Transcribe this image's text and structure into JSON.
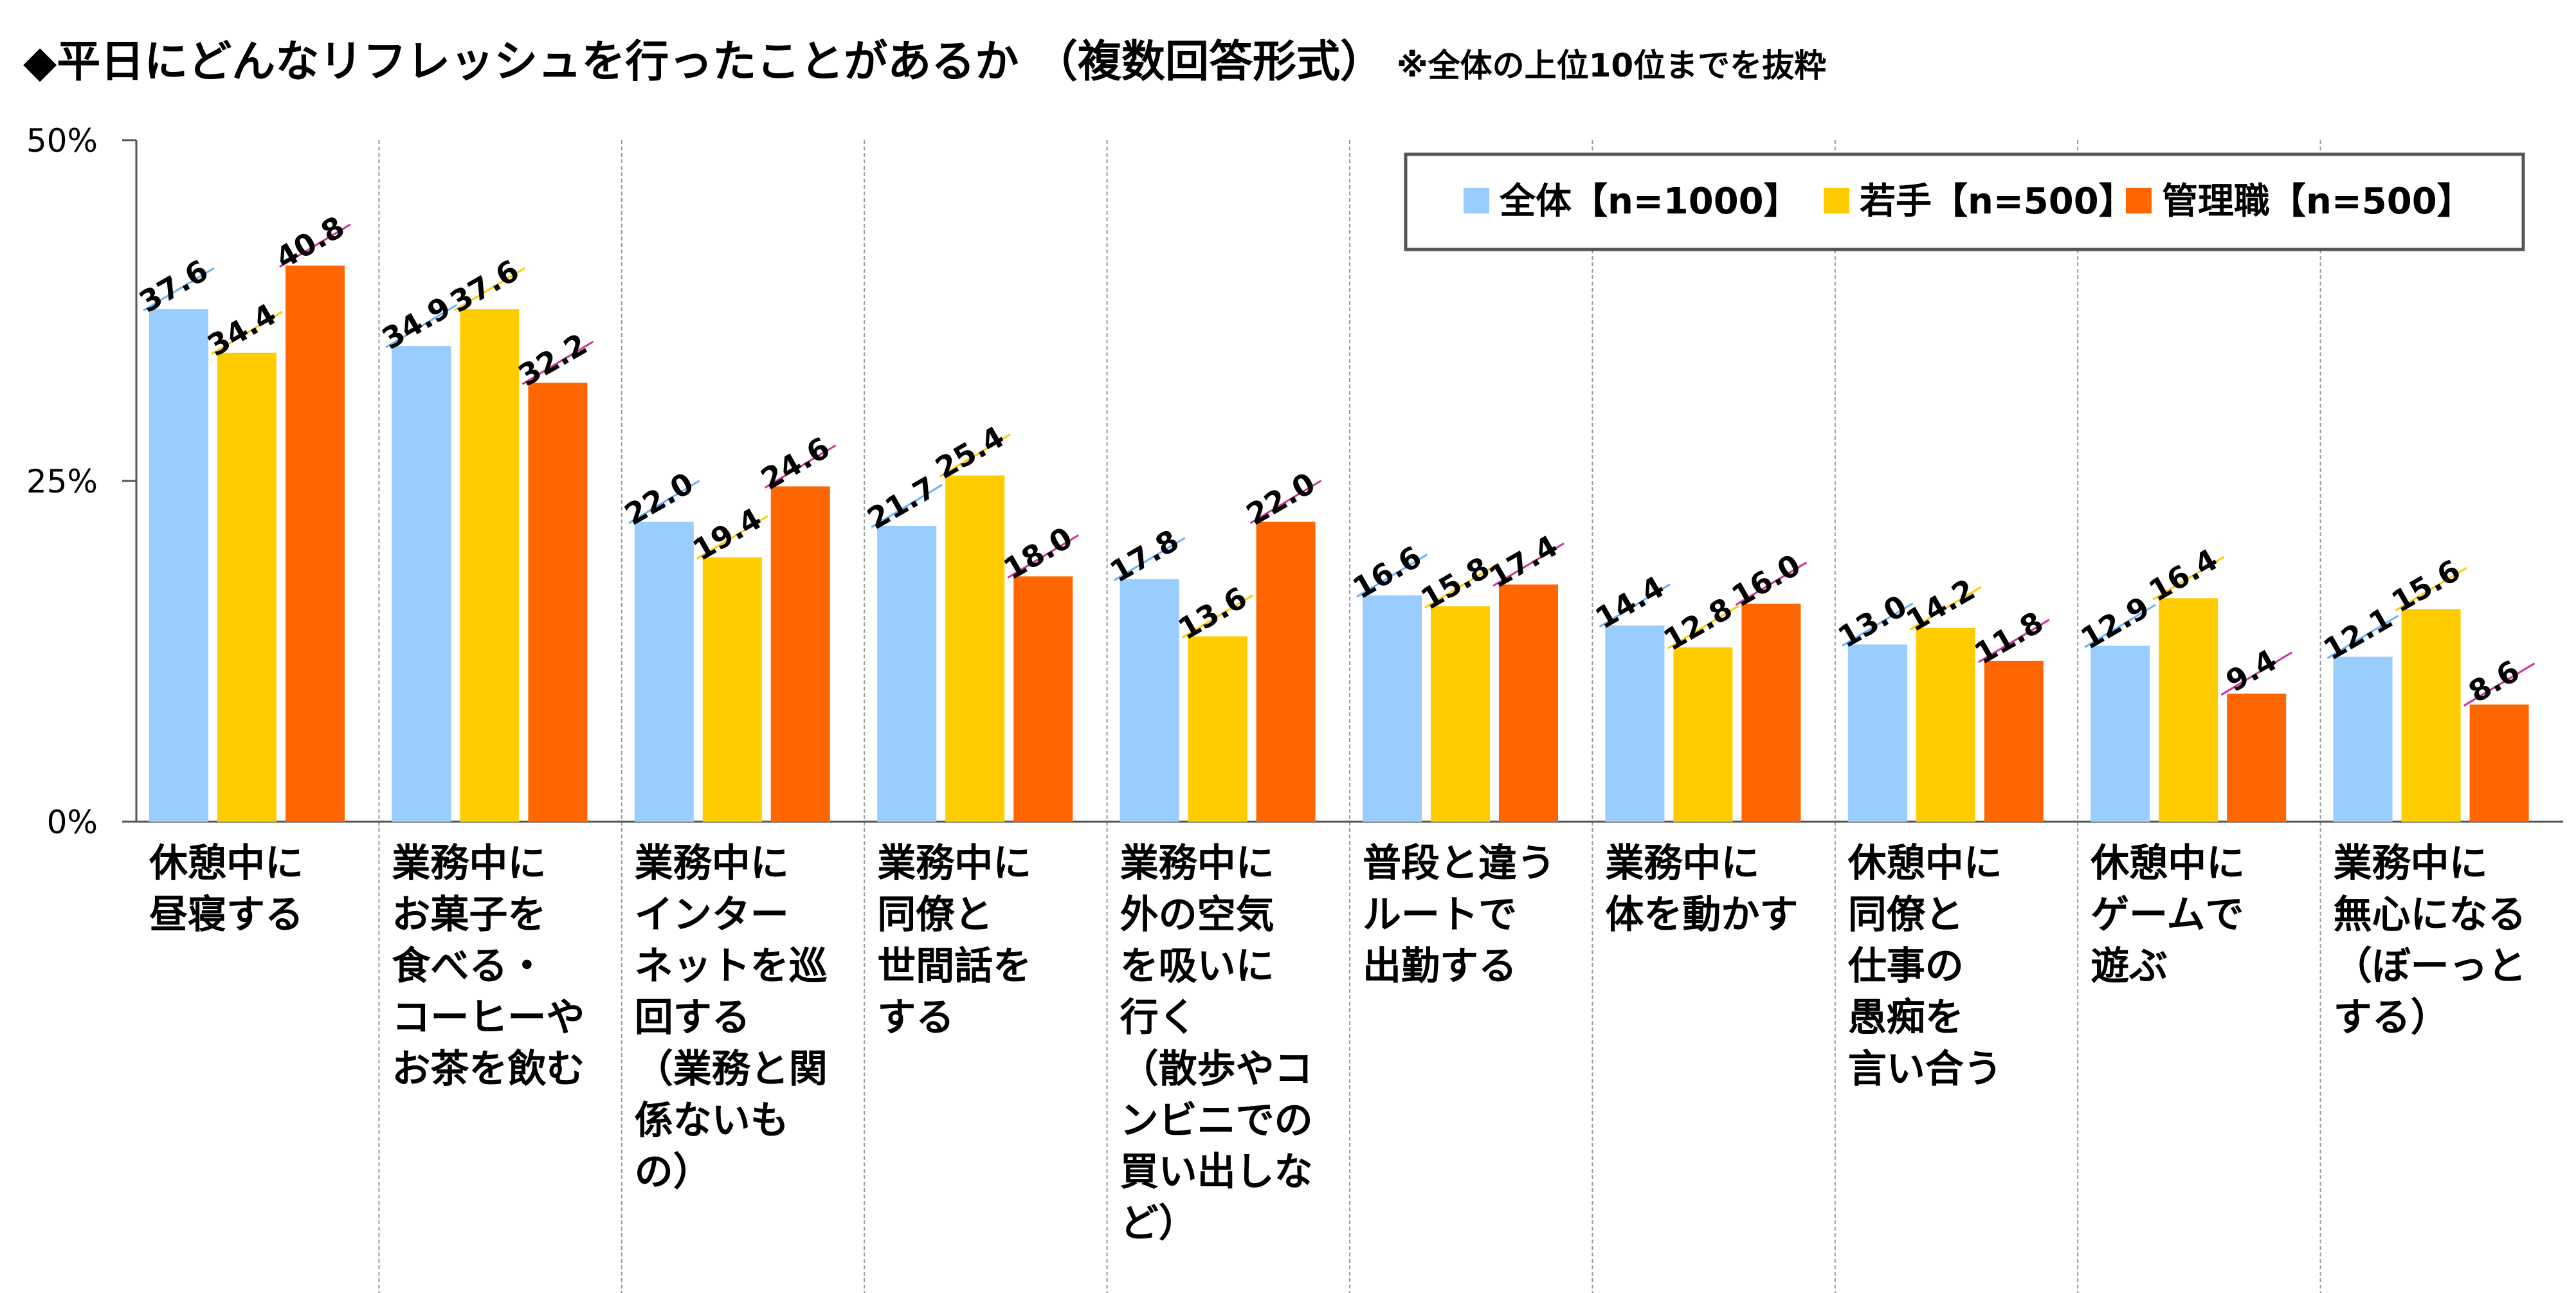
{
  "title": {
    "main": "◆平日にどんなリフレッシュを行ったことがあるか （複数回答形式）",
    "note": "※全体の上位10位までを抜粋"
  },
  "chart_data": {
    "type": "bar",
    "ylim": [
      0,
      50
    ],
    "yticks": [
      "0%",
      "25%",
      "50%"
    ],
    "legend_position": "top-right",
    "grid": false,
    "categories": [
      [
        "休憩中に",
        "昼寝する"
      ],
      [
        "業務中に",
        "お菓子を",
        "食べる・",
        "コーヒーや",
        "お茶を飲む"
      ],
      [
        "業務中に",
        "インター",
        "ネットを巡",
        "回する",
        "（業務と関",
        "係ないも",
        "の）"
      ],
      [
        "業務中に",
        "同僚と",
        "世間話を",
        "する"
      ],
      [
        "業務中に",
        "外の空気",
        "を吸いに",
        "行く",
        "（散歩やコ",
        "ンビニでの",
        "買い出しな",
        "ど）"
      ],
      [
        "普段と違う",
        "ルートで",
        "出勤する"
      ],
      [
        "業務中に",
        "体を動かす"
      ],
      [
        "休憩中に",
        "同僚と",
        "仕事の",
        "愚痴を",
        "言い合う"
      ],
      [
        "休憩中に",
        "ゲームで",
        "遊ぶ"
      ],
      [
        "業務中に",
        "無心になる",
        "（ぼーっと",
        "する）"
      ]
    ],
    "series": [
      {
        "name": "全体【n=1000】",
        "color": "#99CCFF",
        "values": [
          37.6,
          34.9,
          22.0,
          21.7,
          17.8,
          16.6,
          14.4,
          13.0,
          12.9,
          12.1
        ],
        "labels": [
          "37.6",
          "34.9",
          "22.0",
          "21.7",
          "17.8",
          "16.6",
          "14.4",
          "13.0",
          "12.9",
          "12.1"
        ]
      },
      {
        "name": "若手【n=500】",
        "color": "#FFCC00",
        "values": [
          34.4,
          37.6,
          19.4,
          25.4,
          13.6,
          15.8,
          12.8,
          14.2,
          16.4,
          15.6
        ],
        "labels": [
          "34.4",
          "37.6",
          "19.4",
          "25.4",
          "13.6",
          "15.8",
          "12.8",
          "14.2",
          "16.4",
          "15.6"
        ]
      },
      {
        "name": "管理職【n=500】",
        "color": "#FF6600",
        "values": [
          40.8,
          32.2,
          24.6,
          18.0,
          22.0,
          17.4,
          16.0,
          11.8,
          9.4,
          8.6
        ],
        "labels": [
          "40.8",
          "32.2",
          "24.6",
          "18.0",
          "22.0",
          "17.4",
          "16.0",
          "11.8",
          "9.4",
          "8.6"
        ]
      }
    ],
    "label_underline_colors": [
      "#66B2FF",
      "#FFCC00",
      "#CC3399"
    ]
  }
}
